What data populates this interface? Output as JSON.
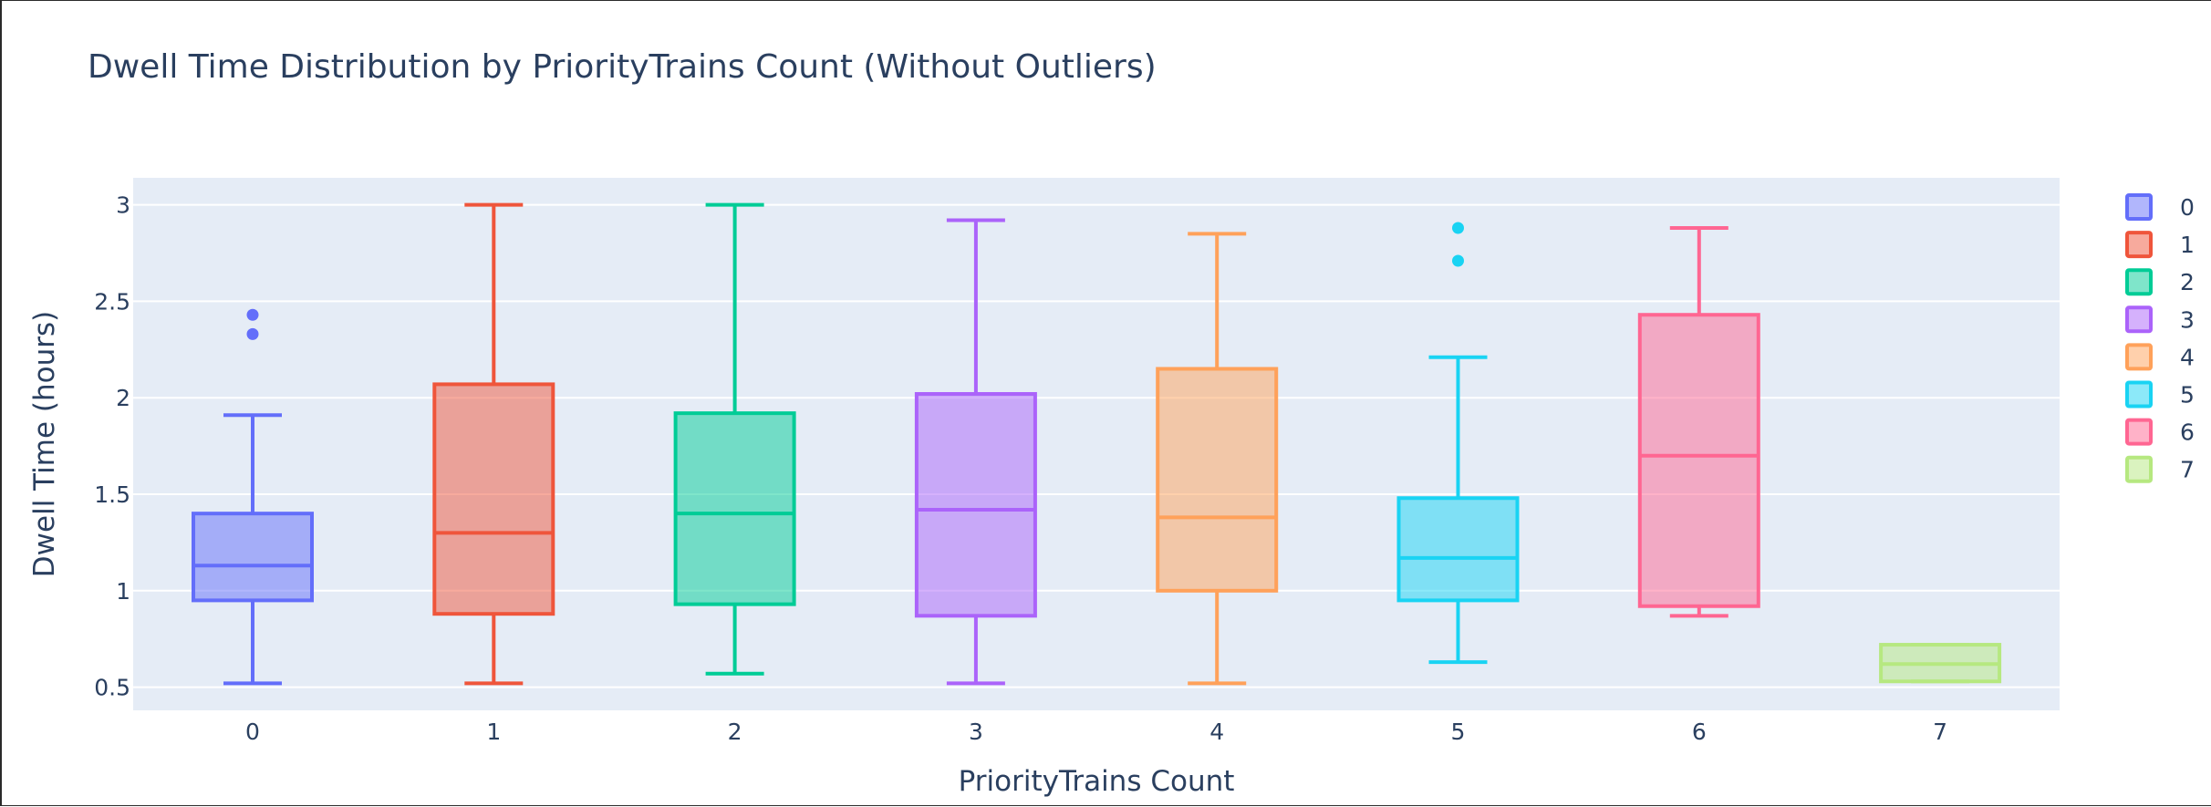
{
  "chart_data": {
    "type": "box",
    "title": "Dwell Time Distribution by PriorityTrains Count (Without Outliers)",
    "xlabel": "PriorityTrains Count",
    "ylabel": "Dwell Time (hours)",
    "categories": [
      "0",
      "1",
      "2",
      "3",
      "4",
      "5",
      "6",
      "7"
    ],
    "y_ticks": [
      "0.5",
      "1",
      "1.5",
      "2",
      "2.5",
      "3"
    ],
    "ylim": [
      0.38,
      3.14
    ],
    "grid": true,
    "legend_position": "right",
    "plot_background": "#e5ecf6",
    "series": [
      {
        "name": "0",
        "color": "#636efa",
        "min": 0.52,
        "q1": 0.95,
        "median": 1.13,
        "q3": 1.4,
        "max": 1.91,
        "outliers": [
          2.33,
          2.43
        ]
      },
      {
        "name": "1",
        "color": "#EF553B",
        "min": 0.52,
        "q1": 0.88,
        "median": 1.3,
        "q3": 2.07,
        "max": 3.0,
        "outliers": []
      },
      {
        "name": "2",
        "color": "#00cc96",
        "min": 0.57,
        "q1": 0.93,
        "median": 1.4,
        "q3": 1.92,
        "max": 3.0,
        "outliers": []
      },
      {
        "name": "3",
        "color": "#ab63fa",
        "min": 0.52,
        "q1": 0.87,
        "median": 1.42,
        "q3": 2.02,
        "max": 2.92,
        "outliers": []
      },
      {
        "name": "4",
        "color": "#FFA15A",
        "min": 0.52,
        "q1": 1.0,
        "median": 1.38,
        "q3": 2.15,
        "max": 2.85,
        "outliers": []
      },
      {
        "name": "5",
        "color": "#19d3f3",
        "min": 0.63,
        "q1": 0.95,
        "median": 1.17,
        "q3": 1.48,
        "max": 2.21,
        "outliers": [
          2.71,
          2.88
        ]
      },
      {
        "name": "6",
        "color": "#FF6692",
        "min": 0.87,
        "q1": 0.92,
        "median": 1.7,
        "q3": 2.43,
        "max": 2.88,
        "outliers": []
      },
      {
        "name": "7",
        "color": "#B6E880",
        "min": 0.53,
        "q1": 0.53,
        "median": 0.62,
        "q3": 0.72,
        "max": 0.72,
        "outliers": []
      }
    ]
  }
}
